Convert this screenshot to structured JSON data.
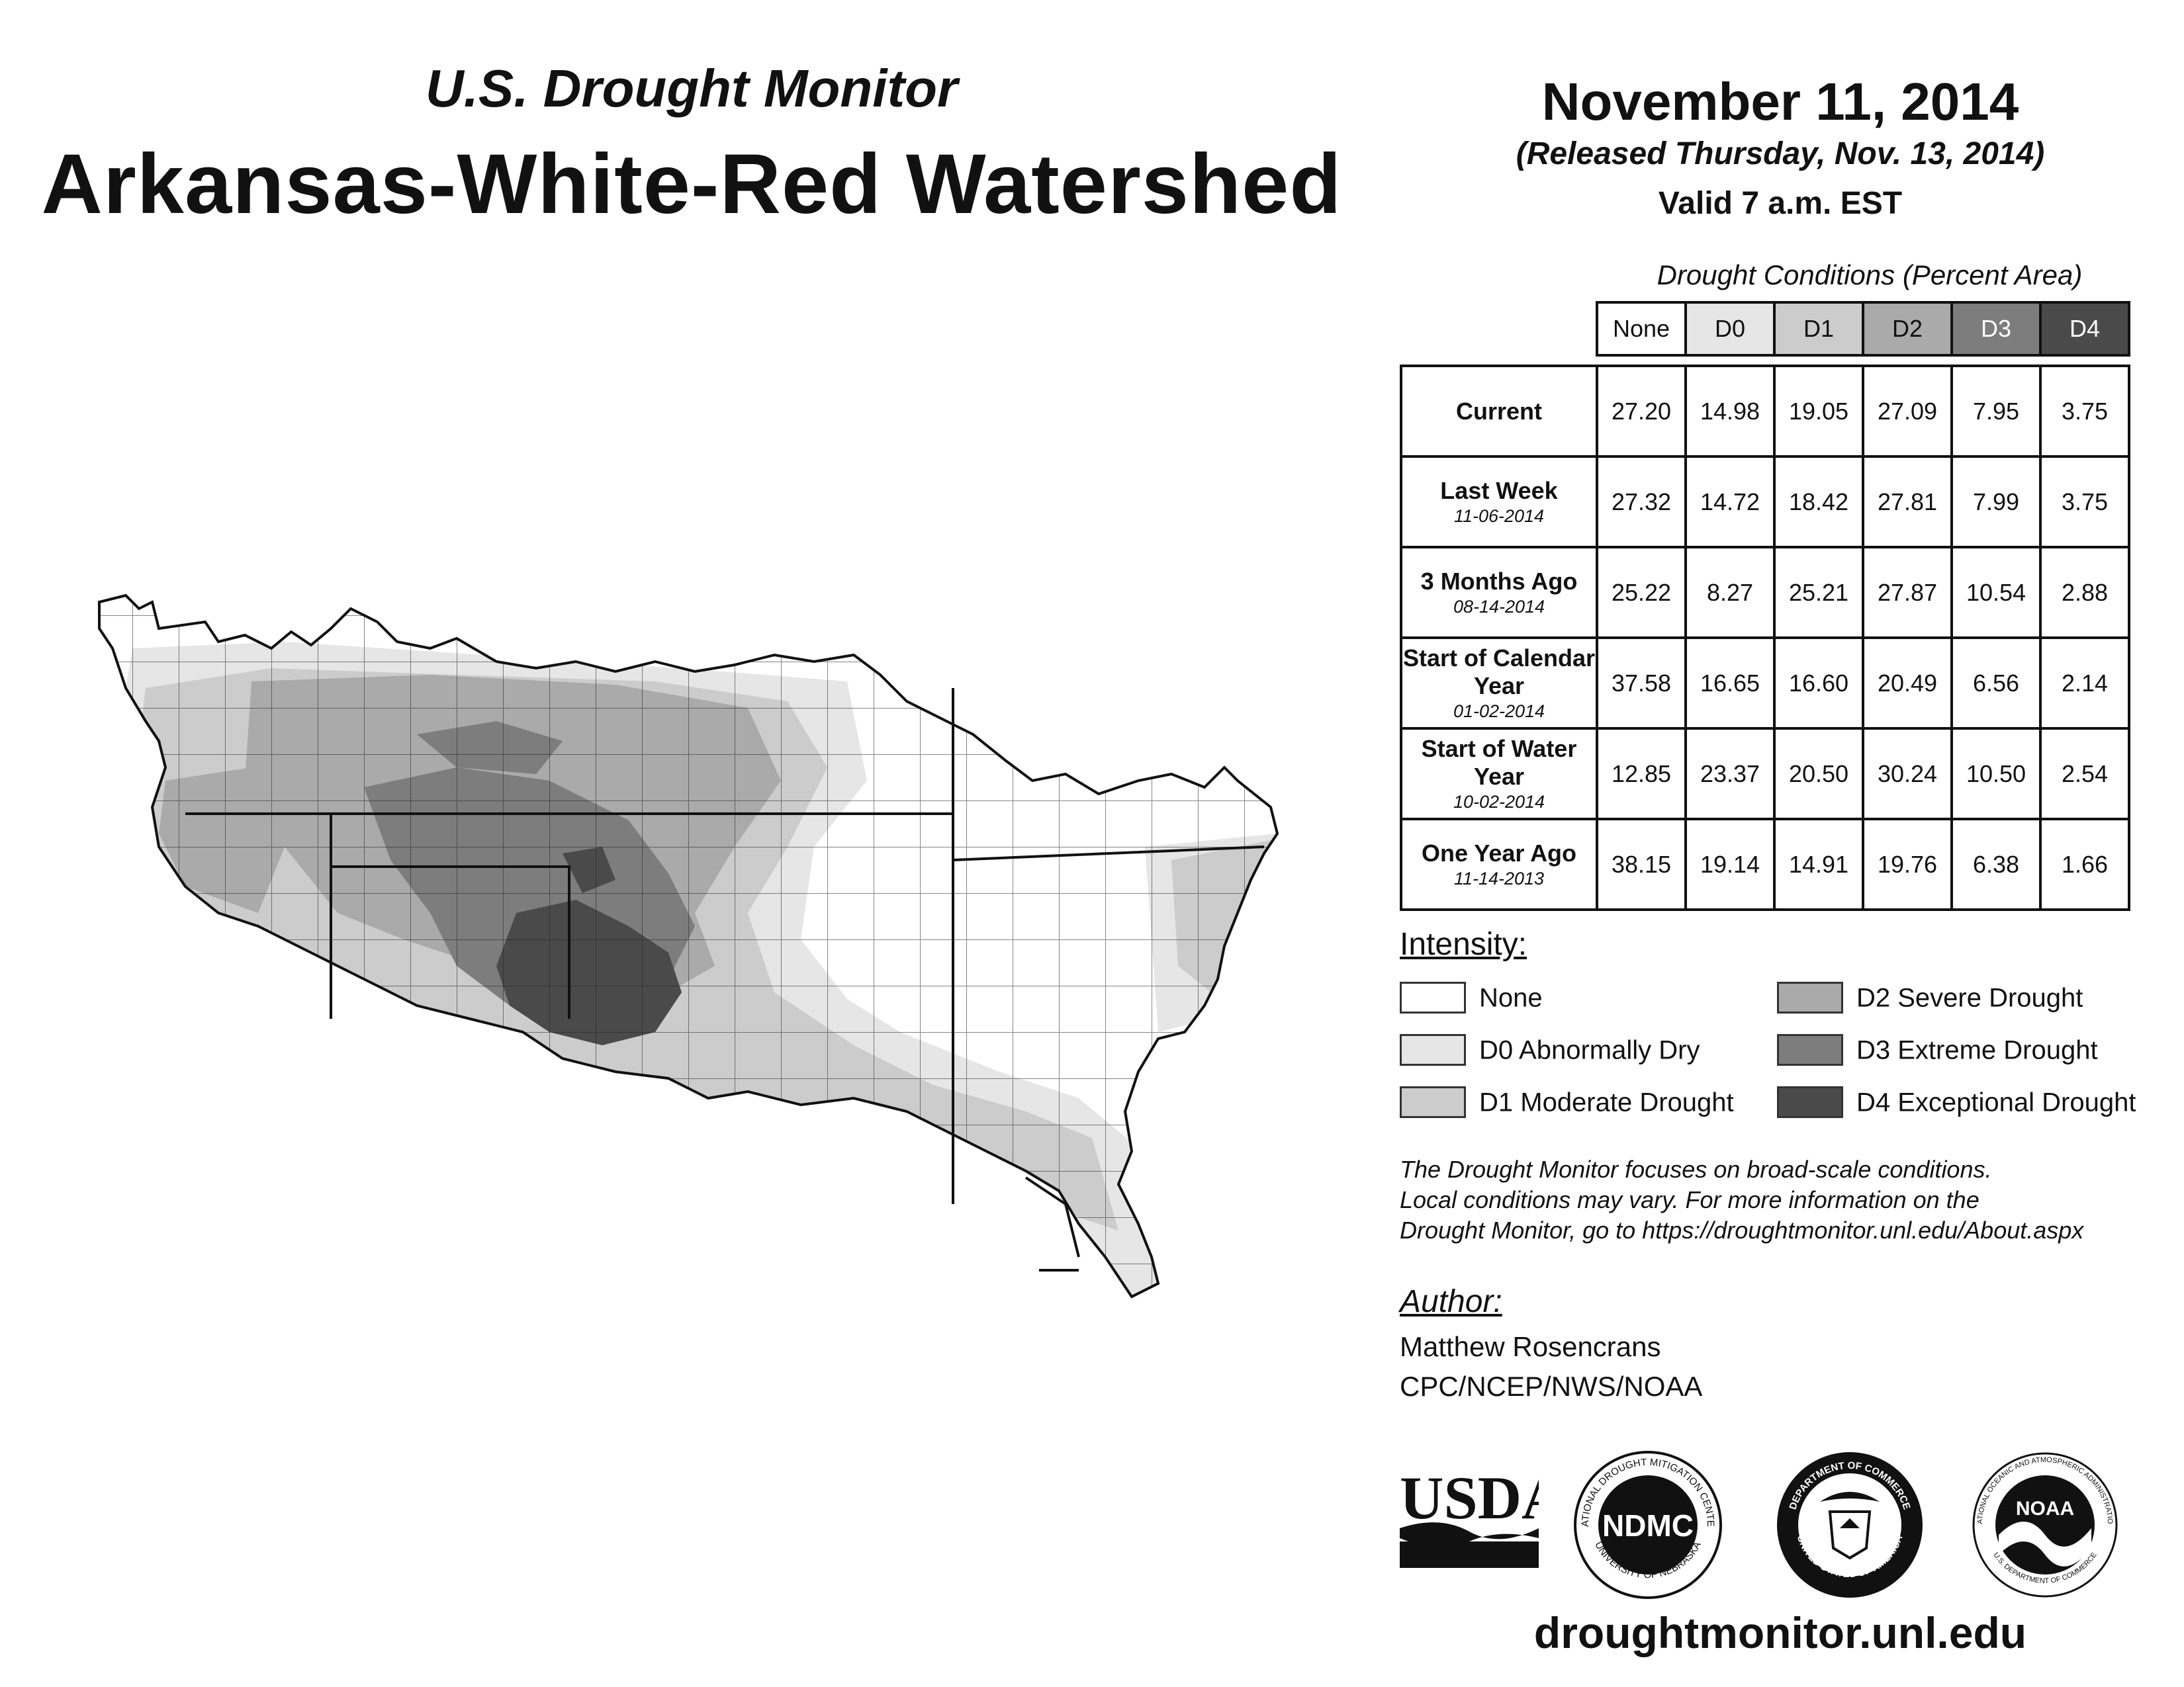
{
  "header": {
    "subtitle": "U.S. Drought Monitor",
    "title": "Arkansas-White-Red Watershed",
    "date": "November 11, 2014",
    "released": "(Released Thursday, Nov. 13, 2014)",
    "valid": "Valid 7 a.m. EST"
  },
  "table": {
    "caption": "Drought Conditions (Percent Area)",
    "columns": [
      "None",
      "D0",
      "D1",
      "D2",
      "D3",
      "D4"
    ],
    "rows": [
      {
        "label": "Current",
        "date": "",
        "values": [
          "27.20",
          "14.98",
          "19.05",
          "27.09",
          "7.95",
          "3.75"
        ]
      },
      {
        "label": "Last Week",
        "date": "11-06-2014",
        "values": [
          "27.32",
          "14.72",
          "18.42",
          "27.81",
          "7.99",
          "3.75"
        ]
      },
      {
        "label": "3 Months Ago",
        "date": "08-14-2014",
        "values": [
          "25.22",
          "8.27",
          "25.21",
          "27.87",
          "10.54",
          "2.88"
        ]
      },
      {
        "label": "Start of Calendar Year",
        "date": "01-02-2014",
        "values": [
          "37.58",
          "16.65",
          "16.60",
          "20.49",
          "6.56",
          "2.14"
        ]
      },
      {
        "label": "Start of Water Year",
        "date": "10-02-2014",
        "values": [
          "12.85",
          "23.37",
          "20.50",
          "30.24",
          "10.50",
          "2.54"
        ]
      },
      {
        "label": "One Year Ago",
        "date": "11-14-2013",
        "values": [
          "38.15",
          "19.14",
          "14.91",
          "19.76",
          "6.38",
          "1.66"
        ]
      }
    ]
  },
  "legend": {
    "title": "Intensity:",
    "items": [
      {
        "label": "None",
        "color": "#ffffff"
      },
      {
        "label": "D0 Abnormally Dry",
        "color": "#e6e6e6"
      },
      {
        "label": "D1 Moderate Drought",
        "color": "#cccccc"
      },
      {
        "label": "D2 Severe Drought",
        "color": "#aaaaaa"
      },
      {
        "label": "D3 Extreme Drought",
        "color": "#7d7d7d"
      },
      {
        "label": "D4 Exceptional Drought",
        "color": "#4a4a4a"
      }
    ]
  },
  "note": {
    "line1": "The Drought Monitor focuses on broad-scale conditions.",
    "line2": "Local conditions may vary. For more information on the",
    "line3": "Drought Monitor, go to https://droughtmonitor.unl.edu/About.aspx"
  },
  "author": {
    "title": "Author:",
    "name": "Matthew Rosencrans",
    "org": "CPC/NCEP/NWS/NOAA"
  },
  "logos": {
    "usda": "USDA",
    "ndmc": "NDMC",
    "ndmc_ring": "NATIONAL DROUGHT MITIGATION CENTER",
    "ndmc_ring2": "UNIVERSITY OF NEBRASKA",
    "doc_ring": "DEPARTMENT OF COMMERCE",
    "doc_ring2": "UNITED STATES OF AMERICA",
    "noaa": "NOAA",
    "noaa_ring": "NATIONAL OCEANIC AND ATMOSPHERIC ADMINISTRATION",
    "noaa_ring2": "U.S. DEPARTMENT OF COMMERCE"
  },
  "footer": {
    "site": "droughtmonitor.unl.edu"
  }
}
